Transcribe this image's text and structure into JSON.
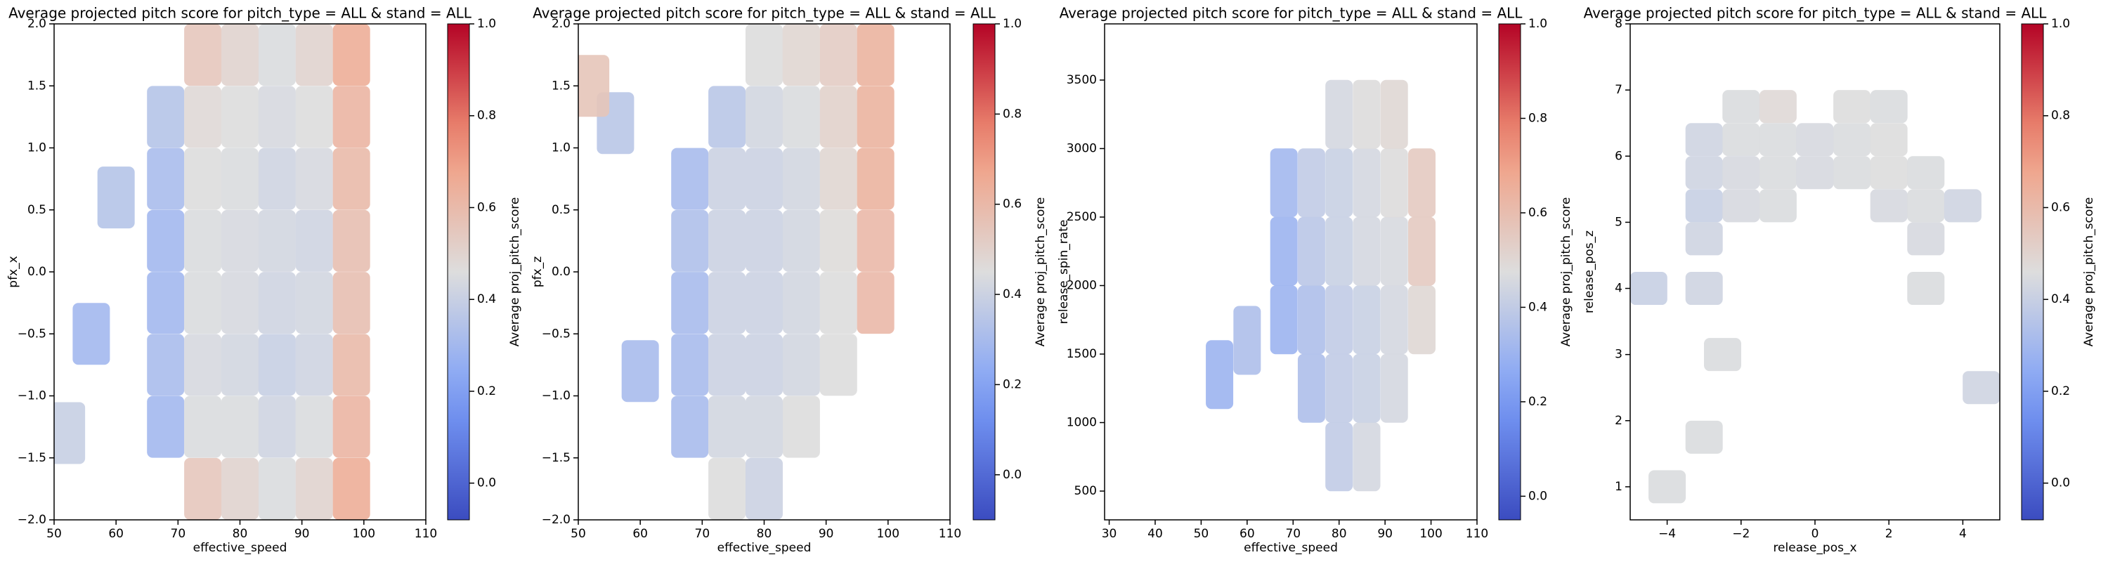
{
  "chart_data": [
    {
      "type": "hexbin",
      "colormap": "coolwarm",
      "title": "Average projected pitch score for pitch_type = ALL & stand = ALL",
      "xlabel": "effective_speed",
      "ylabel": "pfx_x",
      "xlim": [
        50,
        110
      ],
      "ylim": [
        -2,
        2
      ],
      "xticks": [
        50,
        60,
        70,
        80,
        90,
        100,
        110
      ],
      "yticks": [
        {
          "value": -2,
          "label": "−2.0"
        },
        {
          "value": -1.5,
          "label": "−1.5"
        },
        {
          "value": -1,
          "label": "−1.0"
        },
        {
          "value": -0.5,
          "label": "−0.5"
        },
        {
          "value": 0,
          "label": "0.0"
        },
        0.5,
        {
          "value": 1,
          "label": "1.0"
        },
        1.5,
        {
          "value": 2,
          "label": "2.0"
        }
      ],
      "x": [
        74,
        80,
        86,
        92,
        98,
        68,
        74,
        80,
        86,
        92,
        98,
        68,
        74,
        80,
        86,
        92,
        98,
        68,
        74,
        80,
        86,
        92,
        98,
        68,
        74,
        80,
        86,
        92,
        98,
        68,
        74,
        80,
        86,
        92,
        98,
        68,
        74,
        80,
        86,
        92,
        98,
        74,
        80,
        86,
        92,
        98,
        56,
        52,
        60
      ],
      "y": [
        -1.75,
        -1.75,
        -1.75,
        -1.75,
        -1.75,
        -1.25,
        -1.25,
        -1.25,
        -1.25,
        -1.25,
        -1.25,
        -0.75,
        -0.75,
        -0.75,
        -0.75,
        -0.75,
        -0.75,
        -0.25,
        -0.25,
        -0.25,
        -0.25,
        -0.25,
        -0.25,
        0.25,
        0.25,
        0.25,
        0.25,
        0.25,
        0.25,
        0.75,
        0.75,
        0.75,
        0.75,
        0.75,
        0.75,
        1.25,
        1.25,
        1.25,
        1.25,
        1.25,
        1.25,
        1.75,
        1.75,
        1.75,
        1.75,
        1.75,
        -0.5,
        -1.3,
        0.6
      ],
      "values": [
        0.55,
        0.5,
        0.45,
        0.5,
        0.65,
        0.3,
        0.45,
        0.45,
        0.42,
        0.45,
        0.62,
        0.32,
        0.44,
        0.43,
        0.4,
        0.42,
        0.6,
        0.3,
        0.45,
        0.44,
        0.42,
        0.43,
        0.58,
        0.3,
        0.45,
        0.44,
        0.43,
        0.42,
        0.58,
        0.32,
        0.46,
        0.45,
        0.42,
        0.44,
        0.6,
        0.35,
        0.48,
        0.46,
        0.44,
        0.46,
        0.62,
        0.55,
        0.5,
        0.45,
        0.5,
        0.65,
        0.3,
        0.4,
        0.35
      ],
      "colorbar": {
        "label": "Average proj_pitch_score",
        "lim": [
          -0.08,
          1
        ],
        "ticks": [
          {
            "value": 0,
            "label": "0.0"
          },
          0.2,
          0.4,
          0.6,
          0.8,
          {
            "value": 1,
            "label": "1.0"
          }
        ]
      }
    },
    {
      "type": "hexbin",
      "colormap": "coolwarm",
      "title": "Average projected pitch score for pitch_type = ALL & stand = ALL",
      "xlabel": "effective_speed",
      "ylabel": "pfx_z",
      "xlim": [
        50,
        110
      ],
      "ylim": [
        -2,
        2
      ],
      "xticks": [
        50,
        60,
        70,
        80,
        90,
        100,
        110
      ],
      "yticks": [
        {
          "value": -2,
          "label": "−2.0"
        },
        {
          "value": -1.5,
          "label": "−1.5"
        },
        {
          "value": -1,
          "label": "−1.0"
        },
        {
          "value": -0.5,
          "label": "−0.5"
        },
        {
          "value": 0,
          "label": "0.0"
        },
        0.5,
        {
          "value": 1,
          "label": "1.0"
        },
        1.5,
        {
          "value": 2,
          "label": "2.0"
        }
      ],
      "x": [
        74,
        80,
        68,
        74,
        80,
        86,
        68,
        74,
        80,
        86,
        92,
        68,
        74,
        80,
        86,
        92,
        98,
        68,
        74,
        80,
        86,
        92,
        98,
        68,
        74,
        80,
        86,
        92,
        98,
        74,
        80,
        86,
        92,
        98,
        80,
        86,
        92,
        98,
        56,
        52,
        60
      ],
      "y": [
        -1.75,
        -1.75,
        -1.25,
        -1.25,
        -1.25,
        -1.25,
        -0.75,
        -0.75,
        -0.75,
        -0.75,
        -0.75,
        -0.25,
        -0.25,
        -0.25,
        -0.25,
        -0.25,
        -0.25,
        0.25,
        0.25,
        0.25,
        0.25,
        0.25,
        0.25,
        0.75,
        0.75,
        0.75,
        0.75,
        0.75,
        0.75,
        1.25,
        1.25,
        1.25,
        1.25,
        1.25,
        1.75,
        1.75,
        1.75,
        1.75,
        1.2,
        1.5,
        -0.8
      ],
      "values": [
        0.45,
        0.4,
        0.3,
        0.42,
        0.42,
        0.45,
        0.3,
        0.4,
        0.4,
        0.42,
        0.45,
        0.3,
        0.4,
        0.4,
        0.42,
        0.45,
        0.6,
        0.32,
        0.4,
        0.4,
        0.42,
        0.46,
        0.6,
        0.3,
        0.4,
        0.4,
        0.42,
        0.48,
        0.62,
        0.35,
        0.42,
        0.44,
        0.5,
        0.62,
        0.45,
        0.48,
        0.52,
        0.62,
        0.35,
        0.55,
        0.3
      ],
      "colorbar": {
        "label": "Average proj_pitch_score",
        "lim": [
          -0.1,
          1
        ],
        "ticks": [
          {
            "value": 0,
            "label": "0.0"
          },
          0.2,
          0.4,
          0.6,
          0.8,
          {
            "value": 1,
            "label": "1.0"
          }
        ]
      }
    },
    {
      "type": "hexbin",
      "colormap": "coolwarm",
      "title": "Average projected pitch score for pitch_type = ALL & stand = ALL",
      "xlabel": "effective_speed",
      "ylabel": "release_spin_rate",
      "xlim": [
        29,
        110
      ],
      "ylim": [
        290,
        3910
      ],
      "xticks": [
        30,
        40,
        50,
        60,
        70,
        80,
        90,
        100,
        110
      ],
      "yticks": [
        500,
        1000,
        1500,
        2000,
        2500,
        3000,
        3500
      ],
      "x": [
        80,
        86,
        74,
        80,
        86,
        92,
        68,
        74,
        80,
        86,
        92,
        98,
        68,
        74,
        80,
        86,
        92,
        98,
        68,
        74,
        80,
        86,
        92,
        98,
        80,
        86,
        92,
        54,
        60
      ],
      "y": [
        750,
        750,
        1250,
        1250,
        1250,
        1250,
        1750,
        1750,
        1750,
        1750,
        1750,
        1750,
        2250,
        2250,
        2250,
        2250,
        2250,
        2250,
        2750,
        2750,
        2750,
        2750,
        2750,
        2750,
        3250,
        3250,
        3250,
        1350,
        1600
      ],
      "values": [
        0.4,
        0.45,
        0.35,
        0.4,
        0.42,
        0.45,
        0.3,
        0.35,
        0.4,
        0.42,
        0.45,
        0.5,
        0.3,
        0.38,
        0.42,
        0.45,
        0.46,
        0.55,
        0.32,
        0.4,
        0.42,
        0.45,
        0.48,
        0.55,
        0.45,
        0.48,
        0.5,
        0.3,
        0.35
      ],
      "colorbar": {
        "label": "Average proj_pitch_score",
        "lim": [
          -0.05,
          1
        ],
        "ticks": [
          {
            "value": 0,
            "label": "0.0"
          },
          0.2,
          0.4,
          0.6,
          0.8,
          {
            "value": 1,
            "label": "1.0"
          }
        ]
      }
    },
    {
      "type": "hexbin",
      "colormap": "coolwarm",
      "title": "Average projected pitch score for pitch_type = ALL & stand = ALL",
      "xlabel": "release_pos_x",
      "ylabel": "release_pos_z",
      "xlim": [
        -5,
        5
      ],
      "ylim": [
        0.5,
        8
      ],
      "xticks": [
        {
          "value": -4,
          "label": "−4"
        },
        {
          "value": -2,
          "label": "−2"
        },
        0,
        2,
        4
      ],
      "yticks": [
        1,
        2,
        3,
        4,
        5,
        6,
        7,
        8
      ],
      "x": [
        -2,
        -1,
        1,
        2,
        -3,
        -2,
        -1,
        0,
        1,
        2,
        -3,
        -2,
        -1,
        0,
        1,
        2,
        3,
        -3,
        -2,
        -1,
        2,
        3,
        4,
        -3,
        3,
        -4.5,
        -3,
        3,
        -2.5,
        4.5,
        -3,
        -4
      ],
      "y": [
        6.75,
        6.75,
        6.75,
        6.75,
        6.25,
        6.25,
        6.25,
        6.25,
        6.25,
        6.25,
        5.75,
        5.75,
        5.75,
        5.75,
        5.75,
        5.75,
        5.75,
        5.25,
        5.25,
        5.25,
        5.25,
        5.25,
        5.25,
        4.75,
        4.75,
        4,
        4,
        4,
        3,
        2.5,
        1.75,
        1
      ],
      "values": [
        0.45,
        0.48,
        0.46,
        0.45,
        0.42,
        0.45,
        0.45,
        0.44,
        0.45,
        0.46,
        0.42,
        0.44,
        0.45,
        0.44,
        0.45,
        0.46,
        0.45,
        0.4,
        0.44,
        0.45,
        0.44,
        0.45,
        0.42,
        0.42,
        0.44,
        0.4,
        0.42,
        0.45,
        0.45,
        0.42,
        0.45,
        0.45
      ],
      "colorbar": {
        "label": "Average proj_pitch_score",
        "lim": [
          -0.08,
          1
        ],
        "ticks": [
          {
            "value": 0,
            "label": "0.0"
          },
          0.2,
          0.4,
          0.6,
          0.8,
          {
            "value": 1,
            "label": "1.0"
          }
        ]
      }
    }
  ]
}
